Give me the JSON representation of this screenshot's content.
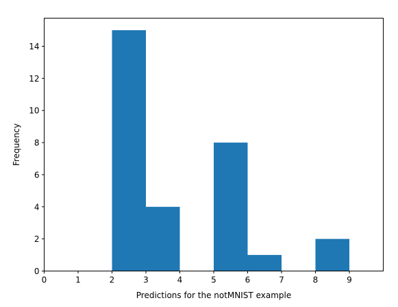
{
  "chart_data": {
    "type": "bar",
    "title": "",
    "xlabel": "Predictions for the notMNIST example",
    "ylabel": "Frequency",
    "xlim": [
      0,
      10
    ],
    "ylim": [
      0,
      15.75
    ],
    "bin_edges": [
      0,
      1,
      2,
      3,
      4,
      5,
      6,
      7,
      8,
      9
    ],
    "bins": [
      {
        "x0": 0,
        "x1": 1,
        "value": 0
      },
      {
        "x0": 1,
        "x1": 2,
        "value": 0
      },
      {
        "x0": 2,
        "x1": 3,
        "value": 15
      },
      {
        "x0": 3,
        "x1": 4,
        "value": 4
      },
      {
        "x0": 4,
        "x1": 5,
        "value": 0
      },
      {
        "x0": 5,
        "x1": 6,
        "value": 8
      },
      {
        "x0": 6,
        "x1": 7,
        "value": 1
      },
      {
        "x0": 7,
        "x1": 8,
        "value": 0
      },
      {
        "x0": 8,
        "x1": 9,
        "value": 2
      }
    ],
    "xticks": [
      0,
      1,
      2,
      3,
      4,
      5,
      6,
      7,
      8,
      9
    ],
    "yticks": [
      0,
      2,
      4,
      6,
      8,
      10,
      12,
      14
    ],
    "bar_color": "#1f77b4",
    "grid": false,
    "legend": "none"
  }
}
